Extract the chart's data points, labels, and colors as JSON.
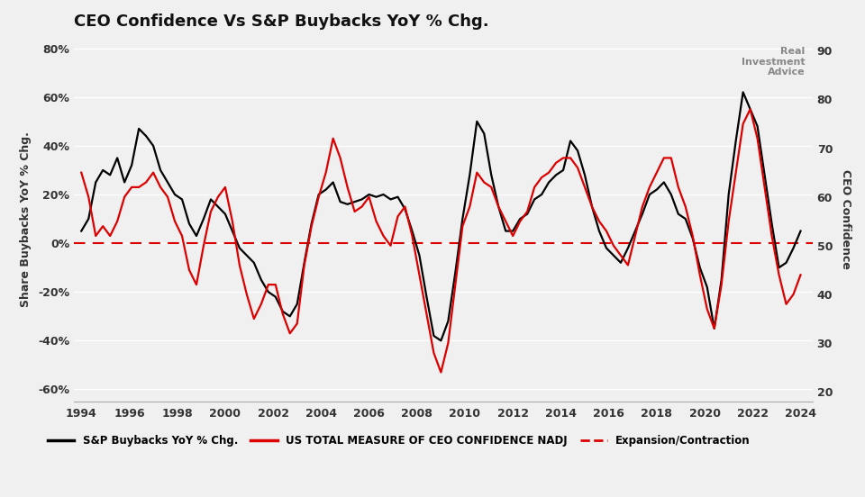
{
  "title": "CEO Confidence Vs S&P Buybacks YoY % Chg.",
  "ylabel_left": "Share Buybacks YoY % Chg.",
  "ylabel_right": "CEO Confidence",
  "xlim": [
    1993.7,
    2024.5
  ],
  "ylim_left": [
    -0.65,
    0.85
  ],
  "ylim_right": [
    18,
    93
  ],
  "yticks_left": [
    -0.6,
    -0.4,
    -0.2,
    0.0,
    0.2,
    0.4,
    0.6,
    0.8
  ],
  "ytick_labels_left": [
    "-60%",
    "-40%",
    "-20%",
    "0%",
    "20%",
    "40%",
    "60%",
    "80%"
  ],
  "yticks_right": [
    20,
    30,
    40,
    50,
    60,
    70,
    80,
    90
  ],
  "xticks": [
    1994,
    1996,
    1998,
    2000,
    2002,
    2004,
    2006,
    2008,
    2010,
    2012,
    2014,
    2016,
    2018,
    2020,
    2022,
    2024
  ],
  "background_color": "#f0f0f0",
  "plot_bg_color": "#f0f0f0",
  "grid_color": "#ffffff",
  "buybacks_color": "#000000",
  "confidence_color": "#dd0000",
  "dashed_color": "#dd0000",
  "buybacks_linewidth": 1.6,
  "confidence_linewidth": 1.6,
  "buybacks_x": [
    1994.0,
    1994.3,
    1994.6,
    1994.9,
    1995.2,
    1995.5,
    1995.8,
    1996.1,
    1996.4,
    1996.7,
    1997.0,
    1997.3,
    1997.6,
    1997.9,
    1998.2,
    1998.5,
    1998.8,
    1999.1,
    1999.4,
    1999.7,
    2000.0,
    2000.3,
    2000.6,
    2000.9,
    2001.2,
    2001.5,
    2001.8,
    2002.1,
    2002.4,
    2002.7,
    2003.0,
    2003.3,
    2003.6,
    2003.9,
    2004.2,
    2004.5,
    2004.8,
    2005.1,
    2005.4,
    2005.7,
    2006.0,
    2006.3,
    2006.6,
    2006.9,
    2007.2,
    2007.5,
    2007.8,
    2008.1,
    2008.4,
    2008.7,
    2009.0,
    2009.3,
    2009.6,
    2009.9,
    2010.2,
    2010.5,
    2010.8,
    2011.1,
    2011.4,
    2011.7,
    2012.0,
    2012.3,
    2012.6,
    2012.9,
    2013.2,
    2013.5,
    2013.8,
    2014.1,
    2014.4,
    2014.7,
    2015.0,
    2015.3,
    2015.6,
    2015.9,
    2016.2,
    2016.5,
    2016.8,
    2017.1,
    2017.4,
    2017.7,
    2018.0,
    2018.3,
    2018.6,
    2018.9,
    2019.2,
    2019.5,
    2019.8,
    2020.1,
    2020.4,
    2020.7,
    2021.0,
    2021.3,
    2021.6,
    2021.9,
    2022.2,
    2022.5,
    2022.8,
    2023.1,
    2023.4,
    2023.7,
    2024.0
  ],
  "buybacks_y": [
    0.05,
    0.1,
    0.25,
    0.3,
    0.28,
    0.35,
    0.25,
    0.32,
    0.47,
    0.44,
    0.4,
    0.3,
    0.25,
    0.2,
    0.18,
    0.08,
    0.03,
    0.1,
    0.18,
    0.15,
    0.12,
    0.05,
    -0.02,
    -0.05,
    -0.08,
    -0.15,
    -0.2,
    -0.22,
    -0.28,
    -0.3,
    -0.25,
    -0.08,
    0.08,
    0.2,
    0.22,
    0.25,
    0.17,
    0.16,
    0.17,
    0.18,
    0.2,
    0.19,
    0.2,
    0.18,
    0.19,
    0.14,
    0.05,
    -0.05,
    -0.22,
    -0.38,
    -0.4,
    -0.32,
    -0.12,
    0.1,
    0.28,
    0.5,
    0.45,
    0.28,
    0.15,
    0.05,
    0.05,
    0.1,
    0.12,
    0.18,
    0.2,
    0.25,
    0.28,
    0.3,
    0.42,
    0.38,
    0.28,
    0.15,
    0.05,
    -0.02,
    -0.05,
    -0.08,
    -0.02,
    0.05,
    0.12,
    0.2,
    0.22,
    0.25,
    0.2,
    0.12,
    0.1,
    0.02,
    -0.1,
    -0.18,
    -0.35,
    -0.15,
    0.2,
    0.42,
    0.62,
    0.55,
    0.48,
    0.28,
    0.08,
    -0.1,
    -0.08,
    -0.02,
    0.05
  ],
  "confidence_x": [
    1994.0,
    1994.3,
    1994.6,
    1994.9,
    1995.2,
    1995.5,
    1995.8,
    1996.1,
    1996.4,
    1996.7,
    1997.0,
    1997.3,
    1997.6,
    1997.9,
    1998.2,
    1998.5,
    1998.8,
    1999.1,
    1999.4,
    1999.7,
    2000.0,
    2000.3,
    2000.6,
    2000.9,
    2001.2,
    2001.5,
    2001.8,
    2002.1,
    2002.4,
    2002.7,
    2003.0,
    2003.3,
    2003.6,
    2003.9,
    2004.2,
    2004.5,
    2004.8,
    2005.1,
    2005.4,
    2005.7,
    2006.0,
    2006.3,
    2006.6,
    2006.9,
    2007.2,
    2007.5,
    2007.8,
    2008.1,
    2008.4,
    2008.7,
    2009.0,
    2009.3,
    2009.6,
    2009.9,
    2010.2,
    2010.5,
    2010.8,
    2011.1,
    2011.4,
    2011.7,
    2012.0,
    2012.3,
    2012.6,
    2012.9,
    2013.2,
    2013.5,
    2013.8,
    2014.1,
    2014.4,
    2014.7,
    2015.0,
    2015.3,
    2015.6,
    2015.9,
    2016.2,
    2016.5,
    2016.8,
    2017.1,
    2017.4,
    2017.7,
    2018.0,
    2018.3,
    2018.6,
    2018.9,
    2019.2,
    2019.5,
    2019.8,
    2020.1,
    2020.4,
    2020.7,
    2021.0,
    2021.3,
    2021.6,
    2021.9,
    2022.2,
    2022.5,
    2022.8,
    2023.1,
    2023.4,
    2023.7,
    2024.0
  ],
  "confidence_y": [
    65,
    60,
    52,
    54,
    52,
    55,
    60,
    62,
    62,
    63,
    65,
    62,
    60,
    55,
    52,
    45,
    42,
    50,
    57,
    60,
    62,
    55,
    46,
    40,
    35,
    38,
    42,
    42,
    36,
    32,
    34,
    46,
    54,
    60,
    65,
    72,
    68,
    62,
    57,
    58,
    60,
    55,
    52,
    50,
    56,
    58,
    52,
    44,
    36,
    28,
    24,
    30,
    42,
    54,
    58,
    65,
    63,
    62,
    58,
    55,
    52,
    55,
    57,
    62,
    64,
    65,
    67,
    68,
    68,
    66,
    62,
    58,
    55,
    53,
    50,
    48,
    46,
    52,
    58,
    62,
    65,
    68,
    68,
    62,
    58,
    52,
    44,
    37,
    33,
    42,
    55,
    65,
    75,
    78,
    72,
    62,
    52,
    44,
    38,
    40,
    44
  ],
  "legend_items": [
    {
      "label": "S&P Buybacks YoY % Chg.",
      "color": "#000000",
      "linestyle": "solid"
    },
    {
      "label": "US TOTAL MEASURE OF CEO CONFIDENCE NADJ",
      "color": "#dd0000",
      "linestyle": "solid"
    },
    {
      "label": "Expansion/Contraction",
      "color": "#dd0000",
      "linestyle": "dashed"
    }
  ]
}
